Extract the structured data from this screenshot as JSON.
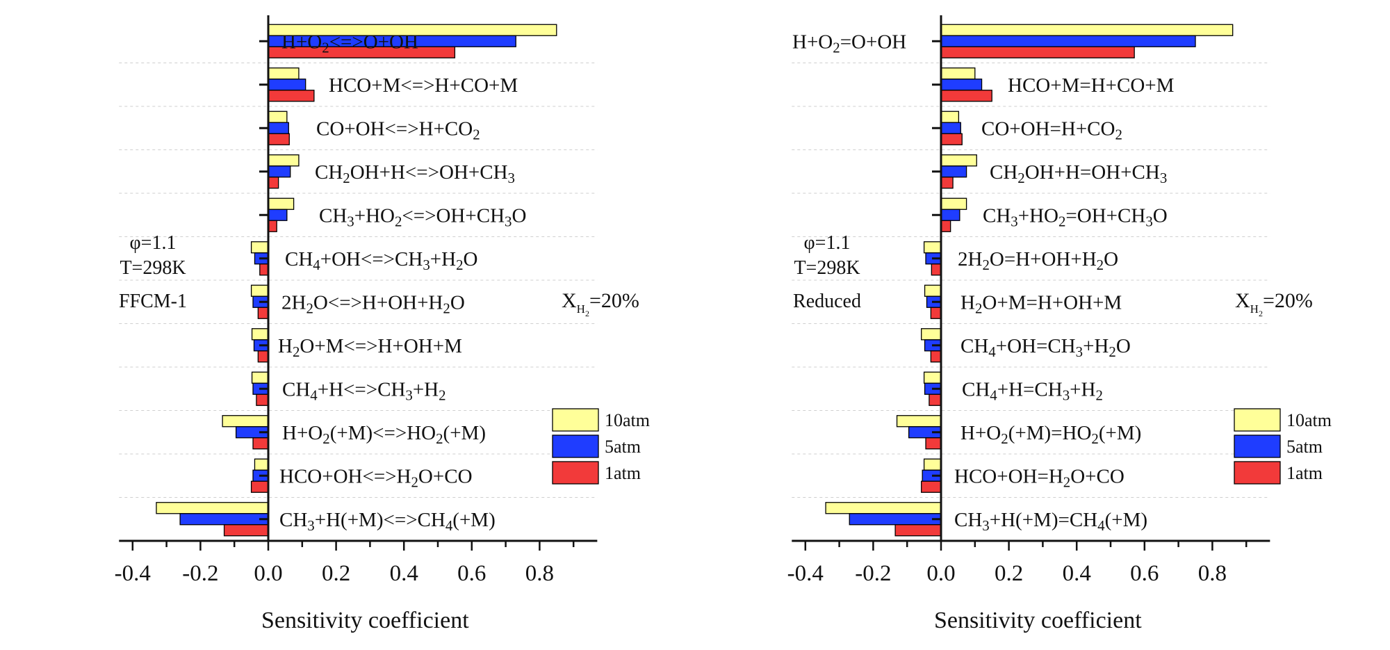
{
  "colors": {
    "10atm": "#ffff99",
    "5atm": "#1f3dff",
    "1atm": "#f23a3a",
    "axis": "#111111",
    "grid": "#cfcfcf"
  },
  "chart_data": [
    {
      "type": "bar",
      "orientation": "horizontal",
      "xlabel": "Sensitivity coefficient",
      "xlim": [
        -0.44,
        0.97
      ],
      "xticks": [
        -0.4,
        -0.2,
        0.0,
        0.2,
        0.4,
        0.6,
        0.8
      ],
      "xtick_labels": [
        "-0.4",
        "-0.2",
        "0.0",
        "0.2",
        "0.4",
        "0.6",
        "0.8"
      ],
      "annotation": [
        "φ=1.1",
        "T=298K",
        "FFCM-1"
      ],
      "composition_label": {
        "prefix": "X",
        "sub": "H",
        "subsub": "2",
        "suffix": "=20%"
      },
      "legend": [
        "10atm",
        "5atm",
        "1atm"
      ],
      "legend_position": "bottom-right",
      "categories": [
        [
          [
            "H+O",
            ""
          ],
          [
            "2",
            "sub"
          ],
          [
            "<=>O+OH",
            ""
          ]
        ],
        [
          [
            "HCO+M<=>H+CO+M",
            ""
          ]
        ],
        [
          [
            "CO+OH<=>H+CO",
            ""
          ],
          [
            "2",
            "sub"
          ]
        ],
        [
          [
            "CH",
            ""
          ],
          [
            "2",
            "sub"
          ],
          [
            "OH+H<=>OH+CH",
            ""
          ],
          [
            "3",
            "sub"
          ]
        ],
        [
          [
            "CH",
            ""
          ],
          [
            "3",
            "sub"
          ],
          [
            "+HO",
            ""
          ],
          [
            "2",
            "sub"
          ],
          [
            "<=>OH+CH",
            ""
          ],
          [
            "3",
            "sub"
          ],
          [
            "O",
            ""
          ]
        ],
        [
          [
            "CH",
            ""
          ],
          [
            "4",
            "sub"
          ],
          [
            "+OH<=>CH",
            ""
          ],
          [
            "3",
            "sub"
          ],
          [
            "+H",
            ""
          ],
          [
            "2",
            "sub"
          ],
          [
            "O",
            ""
          ]
        ],
        [
          [
            "2H",
            ""
          ],
          [
            "2",
            "sub"
          ],
          [
            "O<=>H+OH+H",
            ""
          ],
          [
            "2",
            "sub"
          ],
          [
            "O",
            ""
          ]
        ],
        [
          [
            "H",
            ""
          ],
          [
            "2",
            "sub"
          ],
          [
            "O+M<=>H+OH+M",
            ""
          ]
        ],
        [
          [
            "CH",
            ""
          ],
          [
            "4",
            "sub"
          ],
          [
            "+H<=>CH",
            ""
          ],
          [
            "3",
            "sub"
          ],
          [
            "+H",
            ""
          ],
          [
            "2",
            "sub"
          ]
        ],
        [
          [
            "H+O",
            ""
          ],
          [
            "2",
            "sub"
          ],
          [
            "(+M)<=>HO",
            ""
          ],
          [
            "2",
            "sub"
          ],
          [
            "(+M)",
            ""
          ]
        ],
        [
          [
            "HCO+OH<=>H",
            ""
          ],
          [
            "2",
            "sub"
          ],
          [
            "O+CO",
            ""
          ]
        ],
        [
          [
            "CH",
            ""
          ],
          [
            "3",
            "sub"
          ],
          [
            "+H(+M)<=>CH",
            ""
          ],
          [
            "4",
            "sub"
          ],
          [
            "(+M)",
            ""
          ]
        ]
      ],
      "series": [
        {
          "name": "10atm",
          "values": [
            0.85,
            0.09,
            0.055,
            0.09,
            0.075,
            -0.05,
            -0.05,
            -0.048,
            -0.048,
            -0.135,
            -0.04,
            -0.33
          ]
        },
        {
          "name": "5atm",
          "values": [
            0.73,
            0.11,
            0.06,
            0.065,
            0.055,
            -0.04,
            -0.045,
            -0.042,
            -0.045,
            -0.095,
            -0.045,
            -0.26
          ]
        },
        {
          "name": "1atm",
          "values": [
            0.55,
            0.135,
            0.062,
            0.03,
            0.025,
            -0.025,
            -0.03,
            -0.03,
            -0.035,
            -0.045,
            -0.05,
            -0.13
          ]
        }
      ]
    },
    {
      "type": "bar",
      "orientation": "horizontal",
      "xlabel": "Sensitivity coefficient",
      "xlim": [
        -0.44,
        0.97
      ],
      "xticks": [
        -0.4,
        -0.2,
        0.0,
        0.2,
        0.4,
        0.6,
        0.8
      ],
      "xtick_labels": [
        "-0.4",
        "-0.2",
        "0.0",
        "0.2",
        "0.4",
        "0.6",
        "0.8"
      ],
      "annotation": [
        "φ=1.1",
        "T=298K",
        "Reduced"
      ],
      "composition_label": {
        "prefix": "X",
        "sub": "H",
        "subsub": "2",
        "suffix": "=20%"
      },
      "legend": [
        "10atm",
        "5atm",
        "1atm"
      ],
      "legend_position": "bottom-right",
      "categories": [
        [
          [
            "H+O",
            ""
          ],
          [
            "2",
            "sub"
          ],
          [
            "=O+OH",
            ""
          ]
        ],
        [
          [
            "HCO+M=H+CO+M",
            ""
          ]
        ],
        [
          [
            "CO+OH=H+CO",
            ""
          ],
          [
            "2",
            "sub"
          ]
        ],
        [
          [
            "CH",
            ""
          ],
          [
            "2",
            "sub"
          ],
          [
            "OH+H=OH+CH",
            ""
          ],
          [
            "3",
            "sub"
          ]
        ],
        [
          [
            "CH",
            ""
          ],
          [
            "3",
            "sub"
          ],
          [
            "+HO",
            ""
          ],
          [
            "2",
            "sub"
          ],
          [
            "=OH+CH",
            ""
          ],
          [
            "3",
            "sub"
          ],
          [
            "O",
            ""
          ]
        ],
        [
          [
            "2H",
            ""
          ],
          [
            "2",
            "sub"
          ],
          [
            "O=H+OH+H",
            ""
          ],
          [
            "2",
            "sub"
          ],
          [
            "O",
            ""
          ]
        ],
        [
          [
            "H",
            ""
          ],
          [
            "2",
            "sub"
          ],
          [
            "O+M=H+OH+M",
            ""
          ]
        ],
        [
          [
            "CH",
            ""
          ],
          [
            "4",
            "sub"
          ],
          [
            "+OH=CH",
            ""
          ],
          [
            "3",
            "sub"
          ],
          [
            "+H",
            ""
          ],
          [
            "2",
            "sub"
          ],
          [
            "O",
            ""
          ]
        ],
        [
          [
            "CH",
            ""
          ],
          [
            "4",
            "sub"
          ],
          [
            "+H=CH",
            ""
          ],
          [
            "3",
            "sub"
          ],
          [
            "+H",
            ""
          ],
          [
            "2",
            "sub"
          ]
        ],
        [
          [
            "H+O",
            ""
          ],
          [
            "2",
            "sub"
          ],
          [
            "(+M)=HO",
            ""
          ],
          [
            "2",
            "sub"
          ],
          [
            "(+M)",
            ""
          ]
        ],
        [
          [
            "HCO+OH=H",
            ""
          ],
          [
            "2",
            "sub"
          ],
          [
            "O+CO",
            ""
          ]
        ],
        [
          [
            "CH",
            ""
          ],
          [
            "3",
            "sub"
          ],
          [
            "+H(+M)=CH",
            ""
          ],
          [
            "4",
            "sub"
          ],
          [
            "(+M)",
            ""
          ]
        ]
      ],
      "series": [
        {
          "name": "10atm",
          "values": [
            0.86,
            0.1,
            0.052,
            0.105,
            0.075,
            -0.05,
            -0.048,
            -0.058,
            -0.05,
            -0.13,
            -0.05,
            -0.34
          ]
        },
        {
          "name": "5atm",
          "values": [
            0.75,
            0.12,
            0.058,
            0.075,
            0.055,
            -0.045,
            -0.042,
            -0.048,
            -0.048,
            -0.095,
            -0.055,
            -0.27
          ]
        },
        {
          "name": "1atm",
          "values": [
            0.57,
            0.15,
            0.062,
            0.035,
            0.028,
            -0.028,
            -0.03,
            -0.03,
            -0.035,
            -0.045,
            -0.058,
            -0.135
          ]
        }
      ]
    }
  ]
}
